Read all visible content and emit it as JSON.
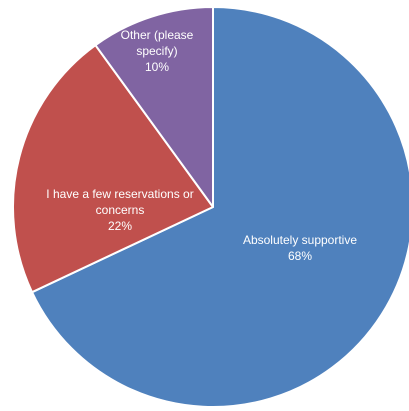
{
  "chart_data": {
    "type": "pie",
    "start_angle_deg": 0,
    "direction": "clockwise",
    "slices": [
      {
        "label_lines": [
          "Absolutely supportive",
          "68%"
        ],
        "value": 68,
        "color": "#4f81bd"
      },
      {
        "label_lines": [
          "I have a few reservations or",
          "concerns",
          "22%"
        ],
        "value": 22,
        "color": "#c0504d"
      },
      {
        "label_lines": [
          "Other (please",
          "specify)",
          "10%"
        ],
        "value": 10,
        "color": "#8064a2"
      }
    ]
  }
}
